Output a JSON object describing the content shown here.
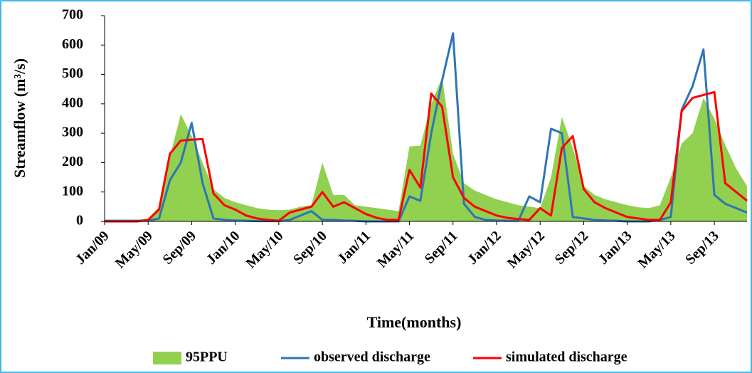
{
  "chart_data": {
    "type": "line",
    "y_label": "Streamflow (m³/s)",
    "x_label": "Time(months)",
    "categories": [
      "Jan/09",
      null,
      null,
      null,
      "May/09",
      null,
      null,
      null,
      "Sep/09",
      null,
      null,
      null,
      "Jan/10",
      null,
      null,
      null,
      "May/10",
      null,
      null,
      null,
      "Sep/10",
      null,
      null,
      null,
      "Jan/11",
      null,
      null,
      null,
      "May/11",
      null,
      null,
      null,
      "Sep/11",
      null,
      null,
      null,
      "Jan/12",
      null,
      null,
      null,
      "May/12",
      null,
      null,
      null,
      "Sep/12",
      null,
      null,
      null,
      "Jan/13",
      null,
      null,
      null,
      "May/13",
      null,
      null,
      null,
      "Sep/13",
      null,
      null,
      null
    ],
    "series": [
      {
        "name": "95PPU",
        "kind": "area",
        "color": "#92d050",
        "values": [
          5,
          5,
          5,
          5,
          10,
          50,
          220,
          365,
          290,
          200,
          110,
          80,
          65,
          55,
          45,
          40,
          38,
          40,
          50,
          55,
          200,
          90,
          90,
          55,
          50,
          45,
          40,
          35,
          255,
          258,
          400,
          490,
          230,
          130,
          105,
          90,
          75,
          65,
          55,
          50,
          45,
          150,
          355,
          250,
          120,
          90,
          75,
          65,
          55,
          48,
          45,
          55,
          150,
          265,
          300,
          420,
          350,
          260,
          180,
          120
        ]
      },
      {
        "name": "observed discharge",
        "kind": "line",
        "color": "#2e75b6",
        "values": [
          2,
          2,
          2,
          2,
          2,
          10,
          140,
          200,
          335,
          130,
          10,
          5,
          3,
          2,
          1,
          1,
          1,
          5,
          20,
          35,
          5,
          5,
          3,
          2,
          0,
          0,
          0,
          0,
          85,
          70,
          300,
          480,
          640,
          60,
          15,
          5,
          3,
          2,
          2,
          85,
          65,
          315,
          300,
          15,
          10,
          5,
          3,
          2,
          0,
          0,
          0,
          5,
          15,
          380,
          460,
          585,
          90,
          60,
          45,
          30
        ]
      },
      {
        "name": "simulated discharge",
        "kind": "line",
        "color": "#ff0000",
        "values": [
          0,
          0,
          0,
          0,
          5,
          40,
          230,
          275,
          278,
          280,
          95,
          55,
          40,
          20,
          10,
          5,
          2,
          30,
          40,
          50,
          100,
          50,
          65,
          45,
          25,
          12,
          5,
          5,
          175,
          115,
          435,
          390,
          150,
          80,
          50,
          35,
          20,
          12,
          8,
          5,
          45,
          20,
          250,
          290,
          110,
          65,
          45,
          30,
          15,
          10,
          5,
          5,
          65,
          375,
          420,
          430,
          440,
          130,
          100,
          70
        ]
      }
    ],
    "ylim": [
      0,
      700
    ],
    "yticks": [
      0,
      100,
      200,
      300,
      400,
      500,
      600,
      700
    ]
  }
}
